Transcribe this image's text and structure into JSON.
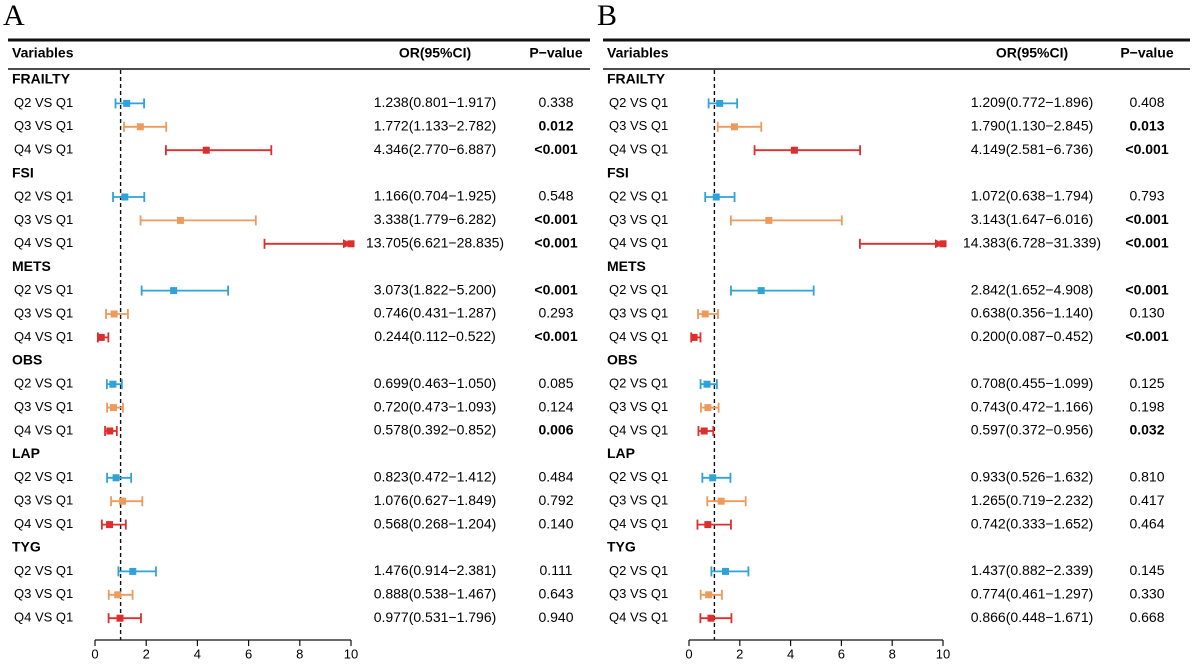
{
  "chart_data": [
    {
      "type": "forest",
      "panel": "A",
      "headers": {
        "variables": "Variables",
        "or": "OR(95%CI)",
        "p": "P−value"
      },
      "xlim": [
        0,
        10
      ],
      "xticks": [
        "0",
        "2",
        "4",
        "6",
        "8",
        "10"
      ],
      "reference_line": 1,
      "groups": [
        {
          "name": "FRAILTY",
          "rows": [
            {
              "label": "Q2 VS Q1",
              "or": 1.238,
              "low": 0.801,
              "high": 1.917,
              "text": "1.238(0.801−1.917)",
              "p": "0.338",
              "sig": false
            },
            {
              "label": "Q3 VS Q1",
              "or": 1.772,
              "low": 1.133,
              "high": 2.782,
              "text": "1.772(1.133−2.782)",
              "p": "0.012",
              "sig": true
            },
            {
              "label": "Q4 VS Q1",
              "or": 4.346,
              "low": 2.77,
              "high": 6.887,
              "text": "4.346(2.770−6.887)",
              "p": "<0.001",
              "sig": true
            }
          ]
        },
        {
          "name": "FSI",
          "rows": [
            {
              "label": "Q2 VS Q1",
              "or": 1.166,
              "low": 0.704,
              "high": 1.925,
              "text": "1.166(0.704−1.925)",
              "p": "0.548",
              "sig": false
            },
            {
              "label": "Q3 VS Q1",
              "or": 3.338,
              "low": 1.779,
              "high": 6.282,
              "text": "3.338(1.779−6.282)",
              "p": "<0.001",
              "sig": true
            },
            {
              "label": "Q4 VS Q1",
              "or": 13.705,
              "low": 6.621,
              "high": 28.835,
              "text": "13.705(6.621−28.835)",
              "p": "<0.001",
              "sig": true
            }
          ]
        },
        {
          "name": "METS",
          "rows": [
            {
              "label": "Q2 VS Q1",
              "or": 3.073,
              "low": 1.822,
              "high": 5.2,
              "text": "3.073(1.822−5.200)",
              "p": "<0.001",
              "sig": true
            },
            {
              "label": "Q3 VS Q1",
              "or": 0.746,
              "low": 0.431,
              "high": 1.287,
              "text": "0.746(0.431−1.287)",
              "p": "0.293",
              "sig": false
            },
            {
              "label": "Q4 VS Q1",
              "or": 0.244,
              "low": 0.112,
              "high": 0.522,
              "text": "0.244(0.112−0.522)",
              "p": "<0.001",
              "sig": true
            }
          ]
        },
        {
          "name": "OBS",
          "rows": [
            {
              "label": "Q2 VS Q1",
              "or": 0.699,
              "low": 0.463,
              "high": 1.05,
              "text": "0.699(0.463−1.050)",
              "p": "0.085",
              "sig": false
            },
            {
              "label": "Q3 VS Q1",
              "or": 0.72,
              "low": 0.473,
              "high": 1.093,
              "text": "0.720(0.473−1.093)",
              "p": "0.124",
              "sig": false
            },
            {
              "label": "Q4 VS Q1",
              "or": 0.578,
              "low": 0.392,
              "high": 0.852,
              "text": "0.578(0.392−0.852)",
              "p": "0.006",
              "sig": true
            }
          ]
        },
        {
          "name": "LAP",
          "rows": [
            {
              "label": "Q2 VS Q1",
              "or": 0.823,
              "low": 0.472,
              "high": 1.412,
              "text": "0.823(0.472−1.412)",
              "p": "0.484",
              "sig": false
            },
            {
              "label": "Q3 VS Q1",
              "or": 1.076,
              "low": 0.627,
              "high": 1.849,
              "text": "1.076(0.627−1.849)",
              "p": "0.792",
              "sig": false
            },
            {
              "label": "Q4 VS Q1",
              "or": 0.568,
              "low": 0.268,
              "high": 1.204,
              "text": "0.568(0.268−1.204)",
              "p": "0.140",
              "sig": false
            }
          ]
        },
        {
          "name": "TYG",
          "rows": [
            {
              "label": "Q2 VS Q1",
              "or": 1.476,
              "low": 0.914,
              "high": 2.381,
              "text": "1.476(0.914−2.381)",
              "p": "0.111",
              "sig": false
            },
            {
              "label": "Q3 VS Q1",
              "or": 0.888,
              "low": 0.538,
              "high": 1.467,
              "text": "0.888(0.538−1.467)",
              "p": "0.643",
              "sig": false
            },
            {
              "label": "Q4 VS Q1",
              "or": 0.977,
              "low": 0.531,
              "high": 1.796,
              "text": "0.977(0.531−1.796)",
              "p": "0.940",
              "sig": false
            }
          ]
        }
      ]
    },
    {
      "type": "forest",
      "panel": "B",
      "headers": {
        "variables": "Variables",
        "or": "OR(95%CI)",
        "p": "P−value"
      },
      "xlim": [
        0,
        10
      ],
      "xticks": [
        "0",
        "2",
        "4",
        "6",
        "8",
        "10"
      ],
      "reference_line": 1,
      "groups": [
        {
          "name": "FRAILTY",
          "rows": [
            {
              "label": "Q2 VS Q1",
              "or": 1.209,
              "low": 0.772,
              "high": 1.896,
              "text": "1.209(0.772−1.896)",
              "p": "0.408",
              "sig": false
            },
            {
              "label": "Q3 VS Q1",
              "or": 1.79,
              "low": 1.13,
              "high": 2.845,
              "text": "1.790(1.130−2.845)",
              "p": "0.013",
              "sig": true
            },
            {
              "label": "Q4 VS Q1",
              "or": 4.149,
              "low": 2.581,
              "high": 6.736,
              "text": "4.149(2.581−6.736)",
              "p": "<0.001",
              "sig": true
            }
          ]
        },
        {
          "name": "FSI",
          "rows": [
            {
              "label": "Q2 VS Q1",
              "or": 1.072,
              "low": 0.638,
              "high": 1.794,
              "text": "1.072(0.638−1.794)",
              "p": "0.793",
              "sig": false
            },
            {
              "label": "Q3 VS Q1",
              "or": 3.143,
              "low": 1.647,
              "high": 6.016,
              "text": "3.143(1.647−6.016)",
              "p": "<0.001",
              "sig": true
            },
            {
              "label": "Q4 VS Q1",
              "or": 14.383,
              "low": 6.728,
              "high": 31.339,
              "text": "14.383(6.728−31.339)",
              "p": "<0.001",
              "sig": true
            }
          ]
        },
        {
          "name": "METS",
          "rows": [
            {
              "label": "Q2 VS Q1",
              "or": 2.842,
              "low": 1.652,
              "high": 4.908,
              "text": "2.842(1.652−4.908)",
              "p": "<0.001",
              "sig": true
            },
            {
              "label": "Q3 VS Q1",
              "or": 0.638,
              "low": 0.356,
              "high": 1.14,
              "text": "0.638(0.356−1.140)",
              "p": "0.130",
              "sig": false
            },
            {
              "label": "Q4 VS Q1",
              "or": 0.2,
              "low": 0.087,
              "high": 0.452,
              "text": "0.200(0.087−0.452)",
              "p": "<0.001",
              "sig": true
            }
          ]
        },
        {
          "name": "OBS",
          "rows": [
            {
              "label": "Q2 VS Q1",
              "or": 0.708,
              "low": 0.455,
              "high": 1.099,
              "text": "0.708(0.455−1.099)",
              "p": "0.125",
              "sig": false
            },
            {
              "label": "Q3 VS Q1",
              "or": 0.743,
              "low": 0.472,
              "high": 1.166,
              "text": "0.743(0.472−1.166)",
              "p": "0.198",
              "sig": false
            },
            {
              "label": "Q4 VS Q1",
              "or": 0.597,
              "low": 0.372,
              "high": 0.956,
              "text": "0.597(0.372−0.956)",
              "p": "0.032",
              "sig": true
            }
          ]
        },
        {
          "name": "LAP",
          "rows": [
            {
              "label": "Q2 VS Q1",
              "or": 0.933,
              "low": 0.526,
              "high": 1.632,
              "text": "0.933(0.526−1.632)",
              "p": "0.810",
              "sig": false
            },
            {
              "label": "Q3 VS Q1",
              "or": 1.265,
              "low": 0.719,
              "high": 2.232,
              "text": "1.265(0.719−2.232)",
              "p": "0.417",
              "sig": false
            },
            {
              "label": "Q4 VS Q1",
              "or": 0.742,
              "low": 0.333,
              "high": 1.652,
              "text": "0.742(0.333−1.652)",
              "p": "0.464",
              "sig": false
            }
          ]
        },
        {
          "name": "TYG",
          "rows": [
            {
              "label": "Q2 VS Q1",
              "or": 1.437,
              "low": 0.882,
              "high": 2.339,
              "text": "1.437(0.882−2.339)",
              "p": "0.145",
              "sig": false
            },
            {
              "label": "Q3 VS Q1",
              "or": 0.774,
              "low": 0.461,
              "high": 1.297,
              "text": "0.774(0.461−1.297)",
              "p": "0.330",
              "sig": false
            },
            {
              "label": "Q4 VS Q1",
              "or": 0.866,
              "low": 0.448,
              "high": 1.671,
              "text": "0.866(0.448−1.671)",
              "p": "0.668",
              "sig": false
            }
          ]
        }
      ]
    }
  ],
  "colors": {
    "q2": "#2fa3d6",
    "q3": "#ee9a5c",
    "q4": "#dd2e2e",
    "text": "#111111"
  }
}
